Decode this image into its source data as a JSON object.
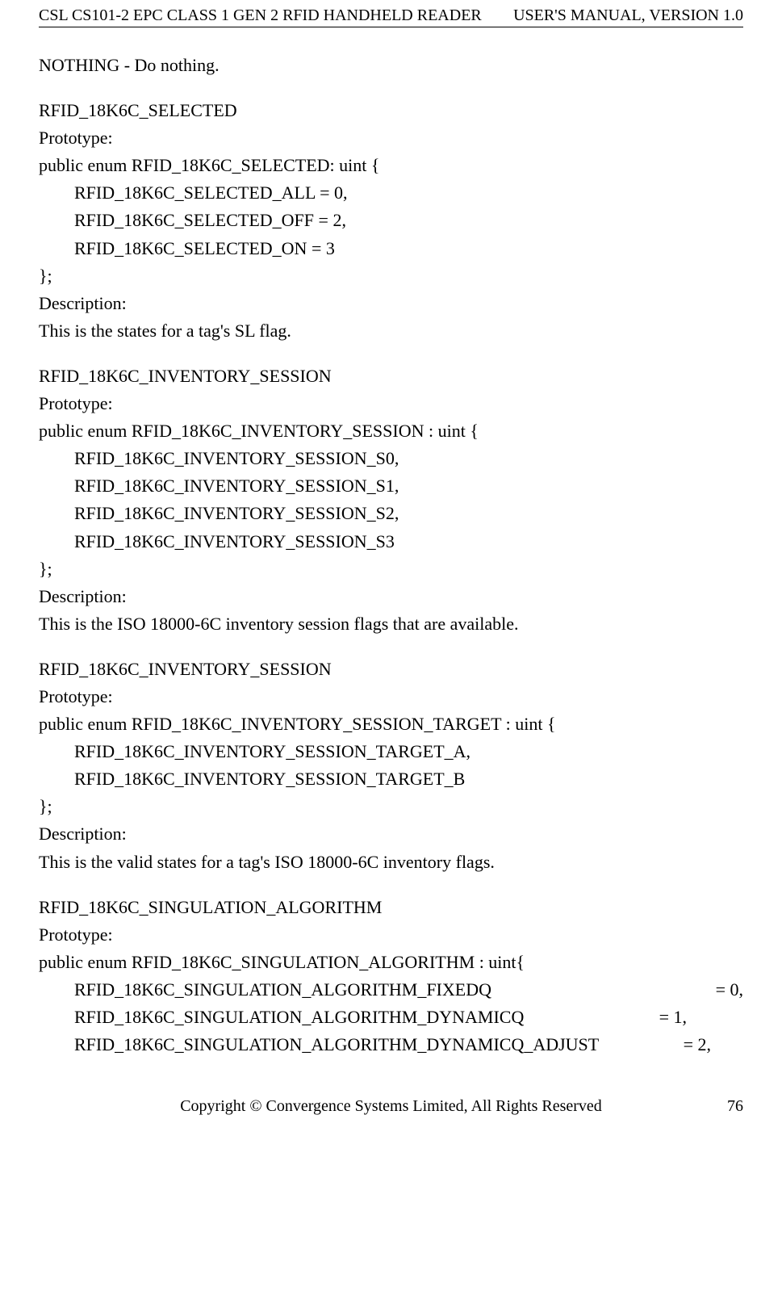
{
  "header": {
    "left": "CSL CS101-2 EPC CLASS 1 GEN 2 RFID HANDHELD READER",
    "right": "USER'S  MANUAL,  VERSION  1.0"
  },
  "content": {
    "line1": "NOTHING - Do nothing.",
    "sec1": {
      "title": "RFID_18K6C_SELECTED",
      "proto_label": "Prototype:",
      "enum_decl": "public enum RFID_18K6C_SELECTED: uint {",
      "members": [
        "RFID_18K6C_SELECTED_ALL = 0,",
        "RFID_18K6C_SELECTED_OFF = 2,",
        "RFID_18K6C_SELECTED_ON    = 3"
      ],
      "close": "};",
      "desc_label": "Description:",
      "desc_text": "This is the states for a tag's SL flag."
    },
    "sec2": {
      "title": "RFID_18K6C_INVENTORY_SESSION",
      "proto_label": "Prototype:",
      "enum_decl": "public enum RFID_18K6C_INVENTORY_SESSION : uint {",
      "members": [
        "RFID_18K6C_INVENTORY_SESSION_S0,",
        "RFID_18K6C_INVENTORY_SESSION_S1,",
        "RFID_18K6C_INVENTORY_SESSION_S2,",
        "RFID_18K6C_INVENTORY_SESSION_S3"
      ],
      "close": "};",
      "desc_label": "Description:",
      "desc_text": "This is the ISO 18000-6C inventory session flags that are available."
    },
    "sec3": {
      "title": "RFID_18K6C_INVENTORY_SESSION",
      "proto_label": "Prototype:",
      "enum_decl": "public enum RFID_18K6C_INVENTORY_SESSION_TARGET : uint {",
      "members": [
        "RFID_18K6C_INVENTORY_SESSION_TARGET_A,",
        "RFID_18K6C_INVENTORY_SESSION_TARGET_B"
      ],
      "close": "};",
      "desc_label": "Description:",
      "desc_text": "This is the valid states for a tag's ISO 18000-6C inventory flags."
    },
    "sec4": {
      "title": "RFID_18K6C_SINGULATION_ALGORITHM",
      "proto_label": "Prototype:",
      "enum_decl": "public enum RFID_18K6C_SINGULATION_ALGORITHM : uint{",
      "member1_left": "RFID_18K6C_SINGULATION_ALGORITHM_FIXEDQ",
      "member1_right": "= 0,",
      "member2_left": "RFID_18K6C_SINGULATION_ALGORITHM_DYNAMICQ",
      "member2_right": "= 1,",
      "member2_pad": "       ",
      "member3_left": "RFID_18K6C_SINGULATION_ALGORITHM_DYNAMICQ_ADJUST",
      "member3_right": "= 2,",
      "member3_pad": "    "
    }
  },
  "footer": {
    "copyright": "Copyright © Convergence Systems Limited, All Rights Reserved",
    "page": "76"
  }
}
